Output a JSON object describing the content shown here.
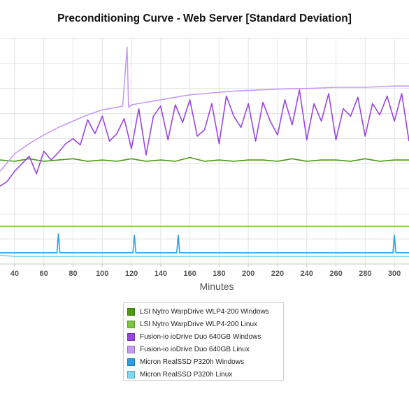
{
  "chart_data": {
    "type": "line",
    "title": "Preconditioning Curve - Web Server [Standard Deviation]",
    "xlabel": "Minutes",
    "ylabel": "",
    "x_ticks": [
      40,
      60,
      80,
      100,
      120,
      140,
      160,
      180,
      200,
      220,
      240,
      260,
      280,
      300
    ],
    "xlim": [
      30,
      310
    ],
    "ylim": [
      0,
      18
    ],
    "grid": true,
    "legend_position": "bottom",
    "series": [
      {
        "name": "LSI Nytro WarpDrive WLP4-200 Windows",
        "color": "#4a9a14",
        "x": [
          30,
          40,
          50,
          60,
          70,
          80,
          90,
          100,
          110,
          120,
          130,
          140,
          150,
          160,
          170,
          180,
          190,
          200,
          210,
          220,
          230,
          240,
          250,
          260,
          270,
          280,
          290,
          300,
          310
        ],
        "y": [
          8.3,
          8.2,
          8.4,
          8.2,
          8.3,
          8.4,
          8.2,
          8.3,
          8.2,
          8.4,
          8.2,
          8.3,
          8.2,
          8.5,
          8.2,
          8.3,
          8.2,
          8.3,
          8.3,
          8.2,
          8.4,
          8.2,
          8.3,
          8.3,
          8.2,
          8.4,
          8.2,
          8.3,
          8.3
        ]
      },
      {
        "name": "LSI Nytro WarpDrive WLP4-200 Linux",
        "color": "#7cc443",
        "x": [
          30,
          50,
          70,
          90,
          110,
          130,
          150,
          170,
          190,
          210,
          230,
          250,
          270,
          290,
          310
        ],
        "y": [
          3.0,
          3.0,
          3.0,
          3.0,
          3.0,
          3.0,
          3.0,
          3.0,
          3.0,
          3.0,
          3.0,
          3.0,
          3.0,
          3.0,
          3.0
        ]
      },
      {
        "name": "Fusion-io ioDrive Duo 640GB Windows",
        "color": "#9a45e0",
        "x": [
          30,
          35,
          40,
          45,
          50,
          55,
          60,
          65,
          70,
          75,
          80,
          85,
          90,
          95,
          100,
          105,
          110,
          115,
          120,
          125,
          130,
          135,
          140,
          145,
          150,
          155,
          160,
          165,
          170,
          175,
          180,
          185,
          190,
          195,
          200,
          205,
          210,
          215,
          220,
          225,
          230,
          235,
          240,
          245,
          250,
          255,
          260,
          265,
          270,
          275,
          280,
          285,
          290,
          295,
          300,
          305,
          310
        ],
        "y": [
          6.2,
          6.6,
          7.4,
          8.0,
          8.6,
          7.2,
          9.0,
          8.3,
          8.9,
          9.6,
          10.0,
          9.5,
          11.5,
          10.4,
          11.8,
          9.8,
          10.4,
          11.6,
          9.2,
          12.4,
          8.7,
          11.8,
          12.6,
          9.9,
          12.7,
          11.3,
          13.1,
          10.2,
          10.7,
          12.8,
          9.6,
          13.4,
          11.8,
          10.9,
          12.8,
          9.8,
          12.9,
          11.4,
          10.3,
          13.1,
          11.1,
          13.9,
          9.9,
          12.8,
          11.4,
          13.6,
          9.9,
          12.4,
          11.8,
          13.3,
          10.2,
          12.8,
          11.9,
          13.4,
          11.4,
          13.6,
          9.8
        ]
      },
      {
        "name": "Fusion-io ioDrive Duo 640GB Linux",
        "color": "#c79cf5",
        "x": [
          30,
          40,
          50,
          60,
          70,
          80,
          90,
          100,
          110,
          114,
          117,
          118,
          120,
          130,
          140,
          150,
          160,
          170,
          180,
          190,
          200,
          210,
          220,
          230,
          240,
          250,
          260,
          270,
          280,
          290,
          300,
          310
        ],
        "y": [
          7.4,
          8.8,
          9.6,
          10.3,
          10.9,
          11.4,
          11.9,
          12.3,
          12.5,
          12.6,
          17.3,
          12.5,
          12.7,
          12.9,
          13.1,
          13.3,
          13.5,
          13.6,
          13.7,
          13.8,
          13.85,
          13.9,
          13.95,
          14.0,
          14.0,
          14.05,
          14.1,
          14.1,
          14.1,
          14.15,
          14.2,
          14.2
        ]
      },
      {
        "name": "Micron RealSSD P320h Windows",
        "color": "#2b9fe0",
        "x": [
          30,
          69,
          70,
          71,
          121,
          122,
          123,
          151,
          152,
          153,
          299,
          300,
          301,
          310
        ],
        "y": [
          0.9,
          0.9,
          2.4,
          0.9,
          0.9,
          2.3,
          0.9,
          0.9,
          2.3,
          0.9,
          0.9,
          2.3,
          0.9,
          0.9
        ]
      },
      {
        "name": "Micron RealSSD P320h Linux",
        "color": "#7fd8f5",
        "x": [
          30,
          40,
          60,
          80,
          100,
          120,
          140,
          160,
          180,
          200,
          220,
          240,
          260,
          280,
          300,
          310
        ],
        "y": [
          0.7,
          0.6,
          0.6,
          0.6,
          0.6,
          0.6,
          0.6,
          0.6,
          0.6,
          0.6,
          0.6,
          0.6,
          0.6,
          0.6,
          0.6,
          0.6
        ]
      }
    ]
  }
}
